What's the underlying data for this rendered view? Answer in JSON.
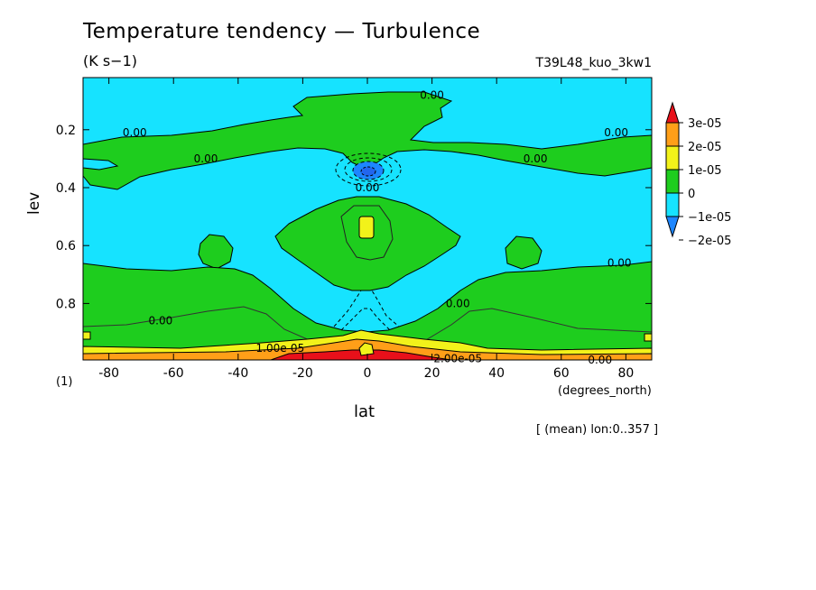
{
  "chart_data": {
    "type": "heatmap",
    "title": "Temperature tendency — Turbulence",
    "units_label": "(K s−1)",
    "run_label": "T39L48_kuo_3kw1",
    "xlabel": "lat",
    "x_units": "(degrees_north)",
    "ylabel": "lev",
    "y_units": "(1)",
    "footnote": "[ (mean) lon:0..357 ]",
    "xlim": [
      -88,
      88
    ],
    "ylim": [
      0.02,
      0.995
    ],
    "x_ticks": [
      -80,
      -60,
      -40,
      -20,
      0,
      20,
      40,
      60,
      80
    ],
    "y_ticks": [
      0.2,
      0.4,
      0.6,
      0.8
    ],
    "y_reversed": true,
    "contour_labels": [
      {
        "text": "0.00",
        "lat": 20,
        "lev": 0.08
      },
      {
        "text": "0.00",
        "lat": -72,
        "lev": 0.21
      },
      {
        "text": "0.00",
        "lat": 77,
        "lev": 0.21
      },
      {
        "text": "0.00",
        "lat": -50,
        "lev": 0.3
      },
      {
        "text": "0.00",
        "lat": 52,
        "lev": 0.3
      },
      {
        "text": "0.00",
        "lat": 0,
        "lev": 0.4
      },
      {
        "text": "0.00",
        "lat": 78,
        "lev": 0.66
      },
      {
        "text": "0.00",
        "lat": 28,
        "lev": 0.8
      },
      {
        "text": "0.00",
        "lat": -64,
        "lev": 0.86
      },
      {
        "text": "1.00e-05",
        "lat": -27,
        "lev": 0.955
      },
      {
        "text": "2.00e-05",
        "lat": 28,
        "lev": 0.99
      },
      {
        "text": "0.00",
        "lat": 72,
        "lev": 0.995
      }
    ],
    "colorbar": {
      "labels": [
        "3e-05",
        "2e-05",
        "1e-05",
        "0",
        "−1e-05",
        "−2e-05"
      ],
      "colors": [
        "#e8101a",
        "#ff9f18",
        "#f2f21a",
        "#1ecd1e",
        "#16e3ff",
        "#1d86ff"
      ]
    },
    "legend_placement": "right",
    "grid": false
  }
}
